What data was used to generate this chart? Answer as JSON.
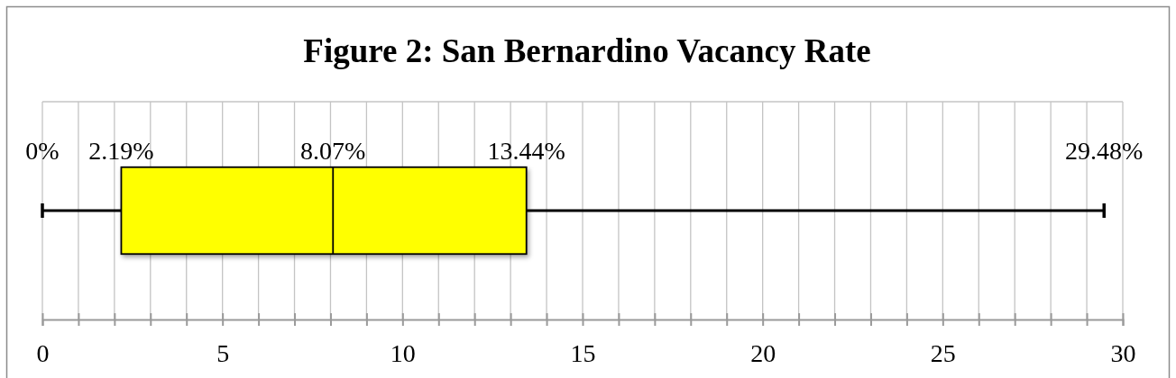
{
  "chart_data": {
    "type": "box",
    "title": "Figure 2: San Bernardino Vacancy Rate",
    "orientation": "horizontal",
    "categories": [
      null
    ],
    "boxes": [
      {
        "low": 0,
        "q1": 2.19,
        "median": 8.07,
        "q3": 13.44,
        "high": 29.48
      }
    ],
    "color": "#ffff00",
    "xlim": [
      0,
      30
    ],
    "xticks": [
      0,
      {
        "value": 1,
        "label": null
      },
      {
        "value": 2,
        "label": null
      },
      {
        "value": 3,
        "label": null
      },
      {
        "value": 4,
        "label": null
      },
      5,
      {
        "value": 6,
        "label": null
      },
      {
        "value": 7,
        "label": null
      },
      {
        "value": 8,
        "label": null
      },
      {
        "value": 9,
        "label": null
      },
      10,
      {
        "value": 11,
        "label": null
      },
      {
        "value": 12,
        "label": null
      },
      {
        "value": 13,
        "label": null
      },
      {
        "value": 14,
        "label": null
      },
      15,
      {
        "value": 16,
        "label": null
      },
      {
        "value": 17,
        "label": null
      },
      {
        "value": 18,
        "label": null
      },
      {
        "value": 19,
        "label": null
      },
      20,
      {
        "value": 21,
        "label": null
      },
      {
        "value": 22,
        "label": null
      },
      {
        "value": 23,
        "label": null
      },
      {
        "value": 24,
        "label": null
      },
      25,
      {
        "value": 26,
        "label": null
      },
      {
        "value": 27,
        "label": null
      },
      {
        "value": 28,
        "label": null
      },
      {
        "value": 29,
        "label": null
      },
      30
    ],
    "grid": "x",
    "tick_labels": "x",
    "annotations": [
      "0%",
      "2.19%",
      "8.07%",
      "13.44%",
      "29.48%"
    ]
  }
}
